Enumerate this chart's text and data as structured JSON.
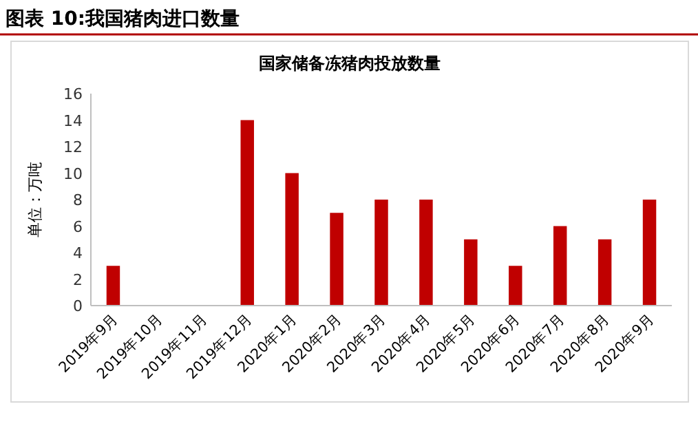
{
  "chart_data": {
    "type": "bar",
    "title": "国家储备冻猪肉投放数量",
    "ylabel": "单位：万吨",
    "annotations": [
      "图表 10:我国猪肉进口数量"
    ],
    "categories": [
      "2019年9月",
      "2019年10月",
      "2019年11月",
      "2019年12月",
      "2020年1月",
      "2020年2月",
      "2020年3月",
      "2020年4月",
      "2020年5月",
      "2020年6月",
      "2020年7月",
      "2020年8月",
      "2020年9月"
    ],
    "values": [
      3,
      0,
      0,
      14,
      10,
      7,
      8,
      8,
      5,
      3,
      6,
      5,
      8
    ],
    "color": "#c00000",
    "ylim": [
      0,
      16
    ],
    "yticks": [
      0,
      2,
      4,
      6,
      8,
      10,
      12,
      14,
      16
    ],
    "grid": false
  }
}
